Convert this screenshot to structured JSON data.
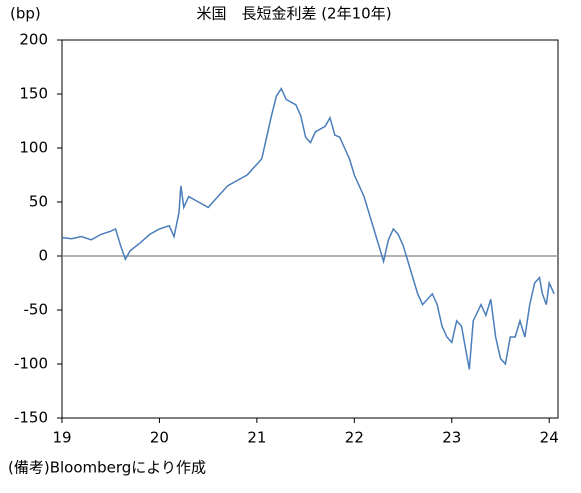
{
  "chart_data": {
    "type": "line",
    "title": "米国　長短金利差 (2年10年)",
    "y_unit": "(bp)",
    "note": "(備考)Bloombergにより作成",
    "x": [
      2019.0,
      2019.1,
      2019.2,
      2019.3,
      2019.4,
      2019.5,
      2019.55,
      2019.6,
      2019.65,
      2019.7,
      2019.8,
      2019.9,
      2020.0,
      2020.1,
      2020.15,
      2020.2,
      2020.22,
      2020.25,
      2020.3,
      2020.4,
      2020.5,
      2020.6,
      2020.7,
      2020.8,
      2020.9,
      2021.0,
      2021.05,
      2021.1,
      2021.15,
      2021.2,
      2021.25,
      2021.3,
      2021.4,
      2021.45,
      2021.5,
      2021.55,
      2021.6,
      2021.7,
      2021.75,
      2021.8,
      2021.85,
      2021.9,
      2021.95,
      2022.0,
      2022.05,
      2022.1,
      2022.15,
      2022.2,
      2022.25,
      2022.3,
      2022.35,
      2022.4,
      2022.45,
      2022.5,
      2022.55,
      2022.6,
      2022.65,
      2022.7,
      2022.8,
      2022.85,
      2022.9,
      2022.95,
      2023.0,
      2023.05,
      2023.1,
      2023.15,
      2023.18,
      2023.22,
      2023.3,
      2023.35,
      2023.4,
      2023.45,
      2023.5,
      2023.55,
      2023.6,
      2023.65,
      2023.7,
      2023.75,
      2023.8,
      2023.85,
      2023.9,
      2023.93,
      2023.97,
      2024.0,
      2024.05
    ],
    "series": [
      {
        "color": "#4a7ebb",
        "values": [
          17,
          16,
          18,
          15,
          20,
          23,
          25,
          10,
          -3,
          5,
          12,
          20,
          25,
          28,
          18,
          40,
          65,
          45,
          55,
          50,
          45,
          55,
          65,
          70,
          75,
          85,
          90,
          110,
          130,
          148,
          155,
          145,
          140,
          130,
          110,
          105,
          115,
          120,
          128,
          112,
          110,
          100,
          90,
          75,
          65,
          55,
          40,
          25,
          10,
          -5,
          15,
          25,
          20,
          10,
          -5,
          -20,
          -35,
          -45,
          -35,
          -45,
          -65,
          -75,
          -80,
          -60,
          -65,
          -90,
          -105,
          -60,
          -45,
          -55,
          -40,
          -75,
          -95,
          -100,
          -75,
          -75,
          -60,
          -75,
          -45,
          -25,
          -20,
          -35,
          -45,
          -25,
          -35
        ]
      }
    ],
    "xlim": [
      2019,
      2024.09
    ],
    "xticks": [
      {
        "value": 2019,
        "label": "19"
      },
      {
        "value": 2020,
        "label": "20"
      },
      {
        "value": 2021,
        "label": "21"
      },
      {
        "value": 2022,
        "label": "22"
      },
      {
        "value": 2023,
        "label": "23"
      },
      {
        "value": 2024,
        "label": "24"
      }
    ],
    "ylim": [
      -150,
      200
    ],
    "yticks": [
      -150,
      -100,
      -50,
      0,
      50,
      100,
      150,
      200
    ],
    "hline": 0,
    "hline_color": "#999999"
  }
}
